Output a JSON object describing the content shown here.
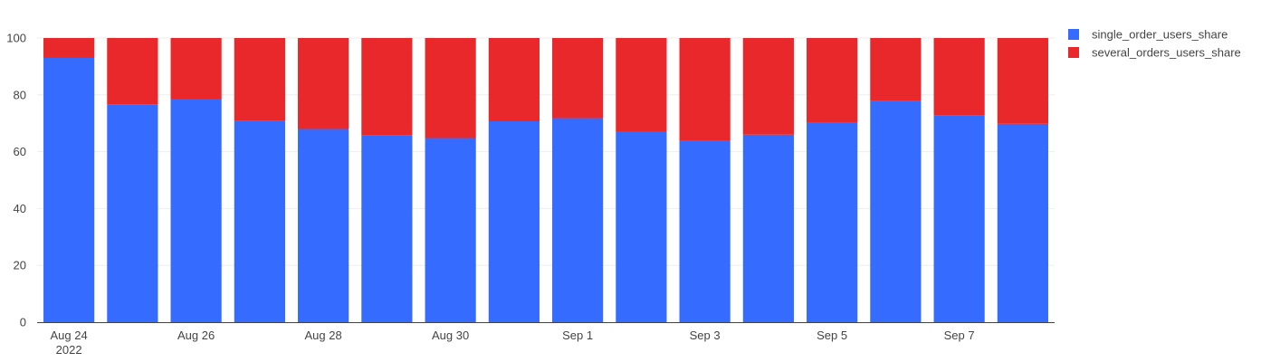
{
  "chart_data": {
    "type": "bar",
    "stacked": true,
    "x": [
      "2022-08-24",
      "2022-08-25",
      "2022-08-26",
      "2022-08-27",
      "2022-08-28",
      "2022-08-29",
      "2022-08-30",
      "2022-08-31",
      "2022-09-01",
      "2022-09-02",
      "2022-09-03",
      "2022-09-04",
      "2022-09-05",
      "2022-09-06",
      "2022-09-07",
      "2022-09-08"
    ],
    "series": [
      {
        "name": "single_order_users_share",
        "color": "#366bff",
        "values": [
          93.0,
          76.7,
          78.5,
          71.0,
          68.0,
          65.7,
          64.8,
          70.7,
          71.8,
          67.2,
          64.0,
          66.0,
          70.1,
          77.9,
          72.9,
          69.8
        ]
      },
      {
        "name": "several_orders_users_share",
        "color": "#e8282a",
        "values": [
          7.0,
          23.3,
          21.5,
          29.0,
          32.0,
          34.3,
          35.2,
          29.3,
          28.2,
          32.8,
          36.0,
          34.0,
          29.9,
          22.1,
          27.1,
          30.2
        ]
      }
    ],
    "ylim": [
      0,
      100
    ],
    "yticks": [
      "0",
      "20",
      "40",
      "60",
      "80",
      "100"
    ],
    "xticks": [
      {
        "index": 0,
        "label": "Aug 24",
        "sublabel": "2022"
      },
      {
        "index": 2,
        "label": "Aug 26",
        "sublabel": ""
      },
      {
        "index": 4,
        "label": "Aug 28",
        "sublabel": ""
      },
      {
        "index": 6,
        "label": "Aug 30",
        "sublabel": ""
      },
      {
        "index": 8,
        "label": "Sep 1",
        "sublabel": ""
      },
      {
        "index": 10,
        "label": "Sep 3",
        "sublabel": ""
      },
      {
        "index": 12,
        "label": "Sep 5",
        "sublabel": ""
      },
      {
        "index": 14,
        "label": "Sep 7",
        "sublabel": ""
      }
    ],
    "grid": true,
    "legend_position": "top-right"
  }
}
